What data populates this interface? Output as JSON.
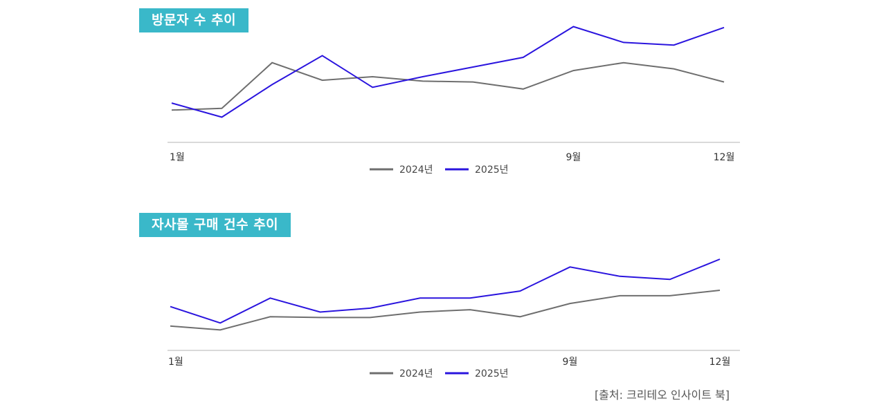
{
  "colors": {
    "badge_bg": "#3ab8c9",
    "series_2024": "#6e6e6e",
    "series_2025": "#2a14de",
    "axis": "#d9d9d9",
    "highlight_tick": "#2a14de"
  },
  "chart_data": [
    {
      "type": "line",
      "title": "방문자 수 추이",
      "x_ticks": [
        "1월",
        "9월",
        "12월"
      ],
      "highlight_tick": "9월",
      "yaxis_visible": false,
      "grid": false,
      "legend_position": "bottom-center",
      "series": [
        {
          "name": "2024년",
          "values": [
            32,
            34,
            86,
            66,
            70,
            65,
            64,
            56,
            77,
            86,
            79,
            64
          ]
        },
        {
          "name": "2025년",
          "values": [
            40,
            24,
            61,
            94,
            58,
            70,
            81,
            92,
            127,
            109,
            106,
            126
          ]
        }
      ]
    },
    {
      "type": "line",
      "title": "자사몰 구매 건수 추이",
      "x_ticks": [
        "1월",
        "9월",
        "12월"
      ],
      "highlight_tick": "9월",
      "yaxis_visible": false,
      "grid": false,
      "legend_position": "bottom-center",
      "series": [
        {
          "name": "2024년",
          "values": [
            26,
            21,
            38,
            37,
            37,
            44,
            47,
            38,
            55,
            65,
            65,
            72
          ]
        },
        {
          "name": "2025년",
          "values": [
            51,
            30,
            62,
            44,
            49,
            62,
            62,
            71,
            102,
            90,
            86,
            112
          ]
        }
      ]
    }
  ],
  "source": "[출처: 크리테오 인사이트 북]"
}
